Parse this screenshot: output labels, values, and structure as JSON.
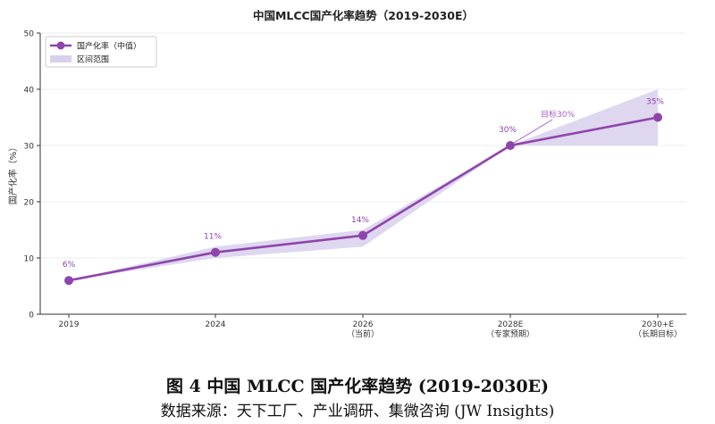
{
  "chart_data": {
    "type": "line",
    "title": "中国MLCC国产化率趋势（2019-2030E）",
    "ylabel": "国产化率（%）",
    "xlabel": "",
    "ylim": [
      0,
      50
    ],
    "yticks": [
      0,
      10,
      20,
      30,
      40,
      50
    ],
    "categories": [
      "2019",
      "2024",
      "2026\n（当前）",
      "2028E\n（专家预期）",
      "2030+E\n（长期目标）"
    ],
    "series": [
      {
        "name": "国产化率（中值）",
        "values": [
          6,
          11,
          14,
          30,
          35
        ],
        "labels": [
          "6%",
          "11%",
          "14%",
          "30%",
          "35%"
        ],
        "color": "#8e44ad"
      }
    ],
    "band": {
      "name": "区间范围",
      "lower": [
        6,
        10,
        12,
        30,
        30
      ],
      "upper": [
        6,
        12,
        15,
        30,
        40
      ],
      "color": "#d8d0ec"
    },
    "annotations": [
      {
        "text": "目标30%",
        "x_index": 3,
        "y": 30
      }
    ],
    "legend_position": "top-left",
    "grid": true
  },
  "caption": {
    "figure_title": "图 4 中国 MLCC 国产化率趋势 (2019-2030E)",
    "source": "数据来源：天下工厂、产业调研、集微咨询 (JW Insights)"
  }
}
